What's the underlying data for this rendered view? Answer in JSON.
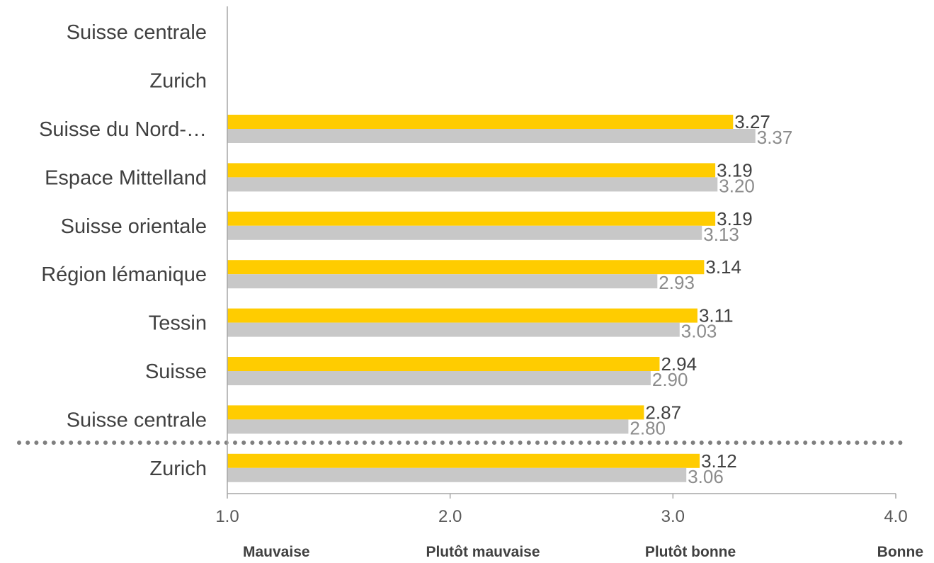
{
  "chart_data": {
    "type": "bar",
    "orientation": "horizontal",
    "categories": [
      "Suisse centrale",
      "Zurich",
      "Suisse du Nord-…",
      "Espace Mittelland",
      "Suisse orientale",
      "Région lémanique",
      "Tessin",
      "Suisse",
      "Suisse centrale",
      "Zurich"
    ],
    "series": [
      {
        "color": "#FFCC00",
        "values": [
          null,
          null,
          3.27,
          3.19,
          3.19,
          3.14,
          3.11,
          2.94,
          2.87,
          3.12
        ],
        "labels": [
          "",
          "",
          "3.27",
          "3.19",
          "3.19",
          "3.14",
          "3.11",
          "2.94",
          "2.87",
          "3.12"
        ]
      },
      {
        "color": "#C8C8C8",
        "values": [
          null,
          null,
          3.37,
          3.2,
          3.13,
          2.93,
          3.03,
          2.9,
          2.8,
          3.06
        ],
        "labels": [
          "",
          "",
          "3.37",
          "3.20",
          "3.13",
          "2.93",
          "3.03",
          "2.90",
          "2.80",
          "3.06"
        ]
      }
    ],
    "xlim": [
      1.0,
      4.0
    ],
    "xticks": [
      "1.0",
      "2.0",
      "3.0",
      "4.0"
    ],
    "scale_labels": [
      "Mauvaise",
      "Plutôt mauvaise",
      "Plutôt bonne",
      "Bonne"
    ],
    "separator_before_index": 9,
    "grid": false,
    "legend": "none"
  },
  "colors": {
    "axis": "#A6A6A6",
    "separator": "#7F7F7F",
    "primary_label": "#404040",
    "secondary_label": "#8C8C8C"
  }
}
